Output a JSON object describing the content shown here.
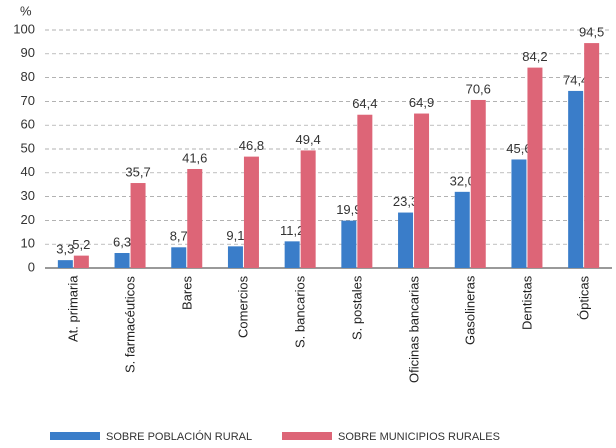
{
  "chart_data": {
    "type": "bar",
    "y_label": "%",
    "categories": [
      "At. primaria",
      "S. farmacéuticos",
      "Bares",
      "Comercios",
      "S. bancarios",
      "S. postales",
      "Oficinas bancarias",
      "Gasolineras",
      "Dentistas",
      "Ópticas"
    ],
    "series": [
      {
        "name": "SOBRE POBLACIÓN RURAL",
        "color": "#3a7dc9",
        "values": [
          3.3,
          6.3,
          8.7,
          9.1,
          11.2,
          19.9,
          23.3,
          32.0,
          45.6,
          74.4
        ],
        "value_labels": [
          "3,3",
          "6,3",
          "8,7",
          "9,1",
          "11,2",
          "19,9",
          "23,3",
          "32,0",
          "45,6",
          "74,4"
        ]
      },
      {
        "name": "SOBRE MUNICIPIOS RURALES",
        "color": "#dd6577",
        "values": [
          5.2,
          35.7,
          41.6,
          46.8,
          49.4,
          64.4,
          64.9,
          70.6,
          84.2,
          94.5
        ],
        "value_labels": [
          "5,2",
          "35,7",
          "41,6",
          "46,8",
          "49,4",
          "64,4",
          "64,9",
          "70,6",
          "84,2",
          "94,5"
        ]
      }
    ],
    "ylim": [
      0,
      100
    ],
    "yticks": [
      0,
      10,
      20,
      30,
      40,
      50,
      60,
      70,
      80,
      90,
      100
    ],
    "grid": true
  }
}
